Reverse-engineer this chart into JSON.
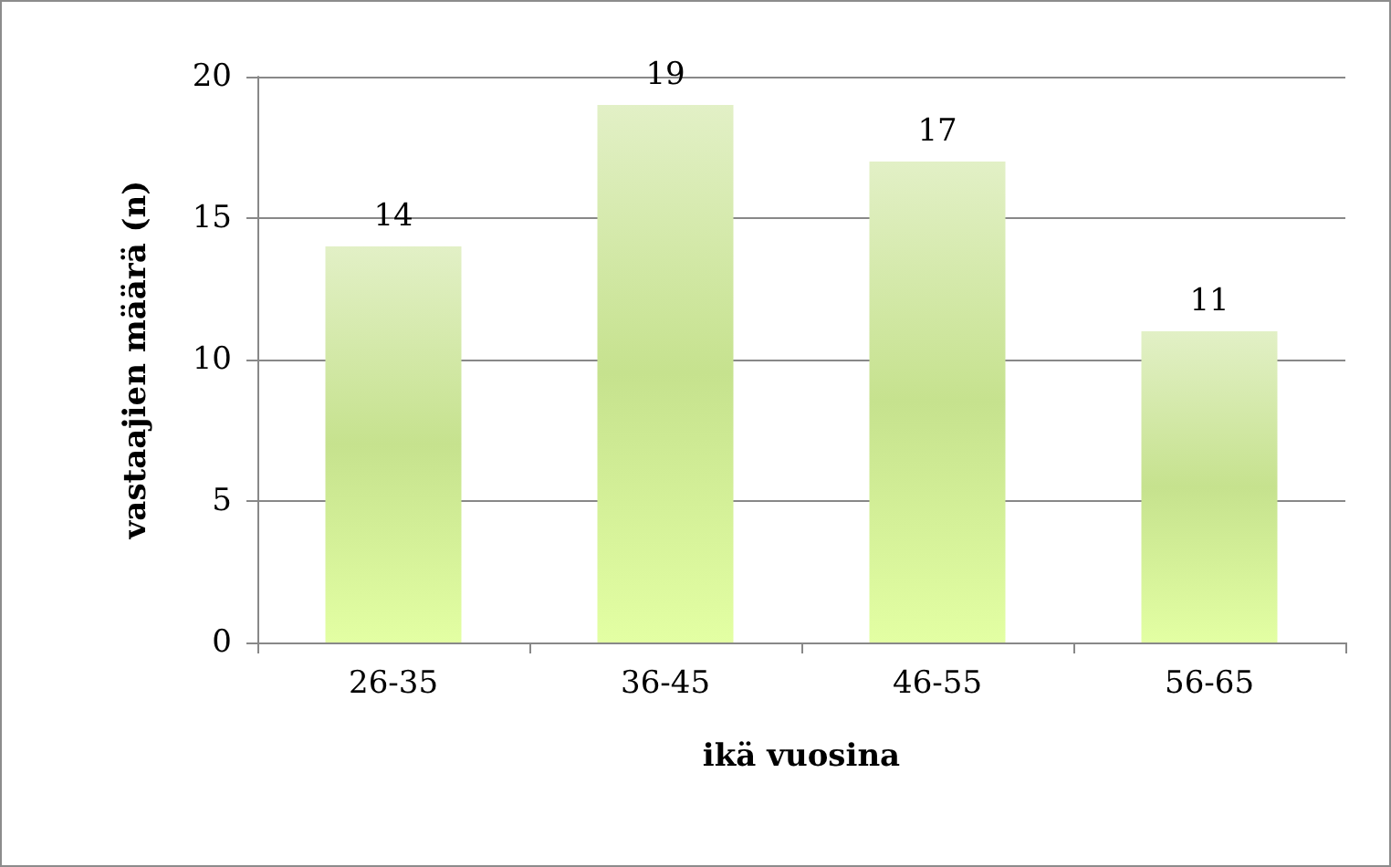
{
  "chart_data": {
    "type": "bar",
    "xlabel": "ikä vuosina",
    "ylabel": "vastaajien määrä (n)",
    "categories": [
      "26-35",
      "36-45",
      "46-55",
      "56-65"
    ],
    "values": [
      14,
      19,
      17,
      11
    ],
    "color": "#c6e28e",
    "ylim": [
      0,
      20
    ],
    "yticks": [
      0,
      5,
      10,
      15,
      20
    ],
    "grid": "y",
    "data_labels": true
  }
}
